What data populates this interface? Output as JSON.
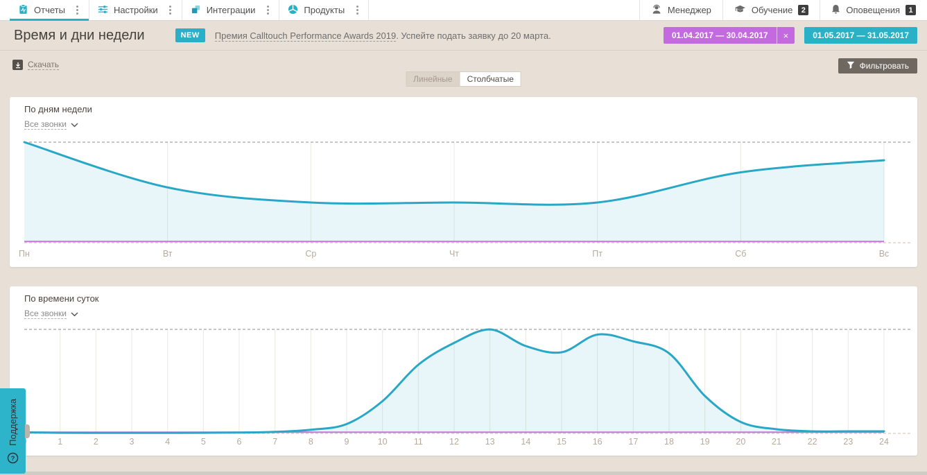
{
  "nav": {
    "tabs": [
      {
        "label": "Отчеты",
        "active": true
      },
      {
        "label": "Настройки",
        "active": false
      },
      {
        "label": "Интеграции",
        "active": false
      },
      {
        "label": "Продукты",
        "active": false
      }
    ],
    "user_items": [
      {
        "label": "Менеджер"
      },
      {
        "label": "Обучение",
        "badge": "2"
      },
      {
        "label": "Оповещения",
        "badge": "1"
      }
    ]
  },
  "header": {
    "title": "Время и дни недели",
    "new_badge": "NEW",
    "announcement_link": "Премия Calltouch Performance Awards 2019",
    "announcement_rest": ". Успейте подать заявку до 20 марта.",
    "date_ranges": [
      {
        "label": "01.04.2017 — 30.04.2017",
        "color": "#c36ae1",
        "close": "×"
      },
      {
        "label": "01.05.2017 — 31.05.2017",
        "color": "#2ab1c5"
      }
    ]
  },
  "toolbar": {
    "download_label": "Скачать",
    "filter_label": "Фильтровать",
    "view_toggle": [
      {
        "label": "Линейные",
        "active": true
      },
      {
        "label": "Столбчатые",
        "active": false
      }
    ]
  },
  "support_label": "Поддержка",
  "accent_colors": {
    "teal": "#29b0c7",
    "purple": "#c36ae1",
    "dark_button": "#6e6861"
  },
  "chart_data": [
    {
      "type": "area",
      "title": "По дням недели",
      "filter_label": "Все звонки",
      "categories": [
        "Пн",
        "Вт",
        "Ср",
        "Чт",
        "Пт",
        "Сб",
        "Вс"
      ],
      "series": [
        {
          "name": "01.05.2017 — 31.05.2017",
          "color": "#28a7c6",
          "fill": "rgba(40,167,198,0.10)",
          "values_relative": [
            1.0,
            0.55,
            0.4,
            0.4,
            0.4,
            0.7,
            0.82
          ]
        },
        {
          "name": "01.04.2017 — 30.04.2017",
          "color": "#ca74e1",
          "fill": "none",
          "values_relative": [
            0.012,
            0.012,
            0.012,
            0.012,
            0.012,
            0.012,
            0.012
          ]
        }
      ],
      "xlabel": "",
      "ylabel": "",
      "ylim": [
        0,
        1
      ],
      "grid": "vertical",
      "legend_position": "none",
      "note": "values are relative heights 0–1 of chart maximum; y-axis has no labels in UI"
    },
    {
      "type": "area",
      "title": "По времени суток",
      "filter_label": "Все звонки",
      "categories": [
        "0",
        "1",
        "2",
        "3",
        "4",
        "5",
        "6",
        "7",
        "8",
        "9",
        "10",
        "11",
        "12",
        "13",
        "14",
        "15",
        "16",
        "17",
        "18",
        "19",
        "20",
        "21",
        "22",
        "23",
        "24"
      ],
      "series": [
        {
          "name": "01.05.2017 — 31.05.2017",
          "color": "#28a7c6",
          "fill": "rgba(40,167,198,0.10)",
          "values_relative": [
            0.01,
            0.006,
            0.005,
            0.005,
            0.005,
            0.006,
            0.008,
            0.015,
            0.035,
            0.09,
            0.31,
            0.66,
            0.87,
            1.0,
            0.84,
            0.78,
            0.95,
            0.885,
            0.77,
            0.36,
            0.11,
            0.04,
            0.02,
            0.02,
            0.02
          ]
        },
        {
          "name": "01.04.2017 — 30.04.2017",
          "color": "#ca74e1",
          "fill": "none",
          "values_relative": [
            0.012,
            0.012,
            0.012,
            0.012,
            0.012,
            0.012,
            0.012,
            0.012,
            0.012,
            0.012,
            0.012,
            0.012,
            0.012,
            0.012,
            0.012,
            0.012,
            0.012,
            0.012,
            0.012,
            0.012,
            0.012,
            0.012,
            0.012,
            0.012,
            0.012
          ]
        }
      ],
      "xlabel": "",
      "ylabel": "",
      "ylim": [
        0,
        1
      ],
      "grid": "vertical",
      "legend_position": "none",
      "note": "values are relative heights 0–1 of chart maximum; y-axis has no labels in UI"
    }
  ]
}
